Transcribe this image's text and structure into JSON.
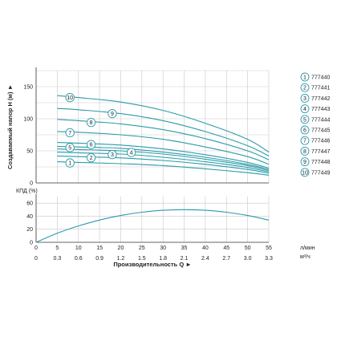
{
  "chart_data": [
    {
      "type": "line",
      "ylabel": "Создаваемый напор H (м) ►",
      "ylim": [
        0,
        175
      ],
      "yticks": [
        0,
        50,
        100,
        150
      ],
      "xlim": [
        0,
        55
      ],
      "grid": true,
      "legend_position": "right",
      "series": [
        {
          "name": "777440",
          "label": "1",
          "x": [
            5,
            10,
            20,
            30,
            40,
            50,
            55
          ],
          "y": [
            33,
            32,
            30,
            27,
            22,
            16,
            12
          ]
        },
        {
          "name": "777441",
          "label": "2",
          "x": [
            5,
            10,
            20,
            30,
            40,
            50,
            55
          ],
          "y": [
            42,
            41,
            39,
            35,
            29,
            21,
            15
          ]
        },
        {
          "name": "777442",
          "label": "3",
          "x": [
            5,
            10,
            20,
            30,
            40,
            50,
            55
          ],
          "y": [
            48,
            47,
            45,
            40,
            33,
            24,
            17
          ]
        },
        {
          "name": "777443",
          "label": "4",
          "x": [
            5,
            10,
            20,
            30,
            40,
            50,
            55
          ],
          "y": [
            53,
            52,
            50,
            45,
            37,
            27,
            19
          ]
        },
        {
          "name": "777444",
          "label": "5",
          "x": [
            5,
            10,
            20,
            30,
            40,
            50,
            55
          ],
          "y": [
            57,
            56,
            54,
            48,
            40,
            29,
            21
          ]
        },
        {
          "name": "777445",
          "label": "6",
          "x": [
            5,
            10,
            20,
            30,
            40,
            50,
            55
          ],
          "y": [
            63,
            62,
            59,
            53,
            44,
            32,
            23
          ]
        },
        {
          "name": "777446",
          "label": "7",
          "x": [
            5,
            10,
            20,
            30,
            40,
            50,
            55
          ],
          "y": [
            80,
            79,
            75,
            68,
            56,
            41,
            29
          ]
        },
        {
          "name": "777447",
          "label": "8",
          "x": [
            5,
            10,
            20,
            30,
            40,
            50,
            55
          ],
          "y": [
            99,
            97,
            92,
            83,
            69,
            50,
            36
          ]
        },
        {
          "name": "777448",
          "label": "9",
          "x": [
            5,
            10,
            20,
            30,
            40,
            50,
            55
          ],
          "y": [
            116,
            114,
            108,
            97,
            80,
            58,
            42
          ]
        },
        {
          "name": "777449",
          "label": "10",
          "x": [
            5,
            10,
            20,
            30,
            40,
            50,
            55
          ],
          "y": [
            136,
            133,
            126,
            113,
            93,
            68,
            48
          ]
        }
      ]
    },
    {
      "type": "line",
      "ylabel": "КПД (%)",
      "ylim": [
        0,
        70
      ],
      "yticks": [
        0,
        20,
        40,
        60
      ],
      "xlabel": "Производительность Q ►",
      "xlim": [
        0,
        55
      ],
      "grid": true,
      "x_ticks": [
        0,
        5,
        10,
        15,
        20,
        25,
        30,
        35,
        40,
        45,
        50,
        55
      ],
      "x_unit": "л/мин",
      "x2_ticks": [
        "0",
        "0.3",
        "0.6",
        "0.9",
        "1.2",
        "1.5",
        "1.8",
        "2.1",
        "2.4",
        "2.7",
        "3.0",
        "3.3"
      ],
      "x2_unit": "м³/ч",
      "series": [
        {
          "name": "КПД",
          "x": [
            0,
            5,
            10,
            15,
            20,
            25,
            30,
            35,
            40,
            45,
            50,
            55
          ],
          "y": [
            0,
            14,
            25,
            34,
            41,
            46,
            49,
            50,
            49,
            46,
            41,
            34
          ]
        }
      ]
    }
  ],
  "colors": {
    "line": "#2a9ba9",
    "grid": "#c9c9c9",
    "axis": "#333333",
    "label_circle": "#2a9ba9"
  }
}
